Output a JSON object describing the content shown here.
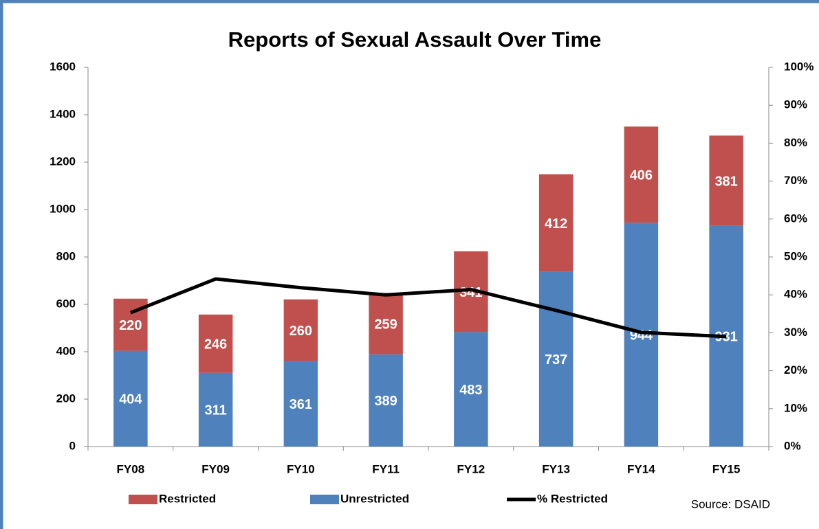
{
  "chart_data": {
    "type": "bar",
    "stacked": true,
    "title": "Reports of Sexual Assault Over Time",
    "source": "Source:  DSAID",
    "categories": [
      "FY08",
      "FY09",
      "FY10",
      "FY11",
      "FY12",
      "FY13",
      "FY14",
      "FY15"
    ],
    "series": [
      {
        "name": "Restricted",
        "type": "bar",
        "color": "#c0504d",
        "values": [
          220,
          246,
          260,
          259,
          341,
          412,
          406,
          381
        ]
      },
      {
        "name": "Unrestricted",
        "type": "bar",
        "color": "#4f81bd",
        "values": [
          404,
          311,
          361,
          389,
          483,
          737,
          944,
          931
        ]
      },
      {
        "name": "% Restricted",
        "type": "line",
        "axis": "y2",
        "color": "#000000",
        "values": [
          35.3,
          44.2,
          41.9,
          40.0,
          41.4,
          35.9,
          30.1,
          29.0
        ]
      }
    ],
    "ylim": [
      0,
      1600
    ],
    "yticks": [
      0,
      200,
      400,
      600,
      800,
      1000,
      1200,
      1400,
      1600
    ],
    "y2lim": [
      0,
      100
    ],
    "y2ticks": [
      {
        "value": 0,
        "label": "0%"
      },
      {
        "value": 10,
        "label": "10%"
      },
      {
        "value": 20,
        "label": "20%"
      },
      {
        "value": 30,
        "label": "30%"
      },
      {
        "value": 40,
        "label": "40%"
      },
      {
        "value": 50,
        "label": "50%"
      },
      {
        "value": 60,
        "label": "60%"
      },
      {
        "value": 70,
        "label": "70%"
      },
      {
        "value": 80,
        "label": "80%"
      },
      {
        "value": 90,
        "label": "90%"
      },
      {
        "value": 100,
        "label": "100%"
      }
    ],
    "legend": "bottom",
    "grid": false
  }
}
